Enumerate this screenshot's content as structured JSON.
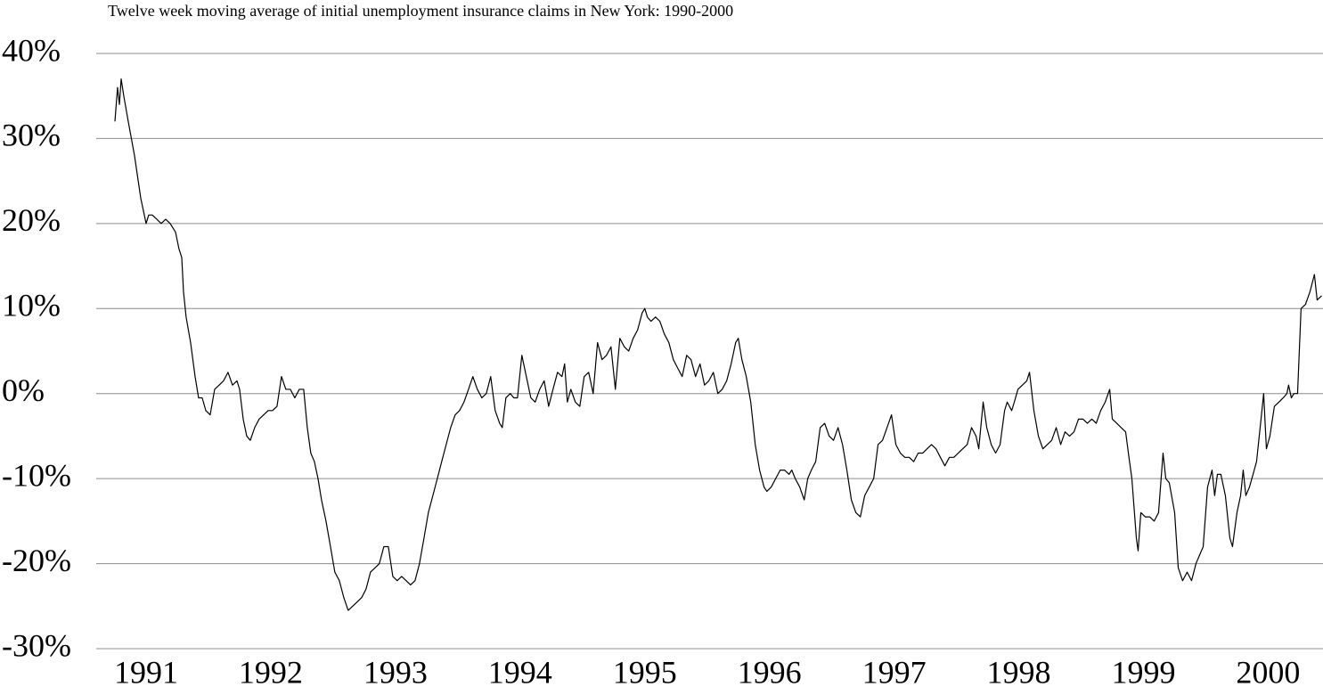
{
  "chart_data": {
    "type": "line",
    "title": "Twelve week moving average of initial unemployment insurance claims in New York:  1990-2000",
    "color": "#000000",
    "grid": true,
    "xlim": [
      1990.6,
      2000.44
    ],
    "xticks": [
      1991,
      1992,
      1993,
      1994,
      1995,
      1996,
      1997,
      1998,
      1999,
      2000
    ],
    "ylim": [
      -30,
      40
    ],
    "yticks": [
      {
        "value": -30,
        "label": "-30%"
      },
      {
        "value": -20,
        "label": "-20%"
      },
      {
        "value": -10,
        "label": "-10%"
      },
      {
        "value": 0,
        "label": "0%"
      },
      {
        "value": 10,
        "label": "10%"
      },
      {
        "value": 20,
        "label": "20%"
      },
      {
        "value": 30,
        "label": "30%"
      },
      {
        "value": 40,
        "label": "40%"
      }
    ],
    "x": [
      1990.75,
      1990.771,
      1990.786,
      1990.8,
      1990.821,
      1990.857,
      1990.907,
      1990.957,
      1991,
      1991.021,
      1991.05,
      1991.086,
      1991.121,
      1991.157,
      1991.193,
      1991.236,
      1991.264,
      1991.286,
      1991.3,
      1991.321,
      1991.357,
      1991.393,
      1991.421,
      1991.45,
      1991.479,
      1991.514,
      1991.55,
      1991.586,
      1991.621,
      1991.657,
      1991.693,
      1991.729,
      1991.75,
      1991.779,
      1991.807,
      1991.836,
      1991.871,
      1991.907,
      1991.943,
      1991.979,
      1992.014,
      1992.05,
      1992.086,
      1992.121,
      1992.157,
      1992.193,
      1992.229,
      1992.264,
      1992.293,
      1992.321,
      1992.35,
      1992.379,
      1992.407,
      1992.443,
      1992.479,
      1992.514,
      1992.55,
      1992.586,
      1992.621,
      1992.657,
      1992.693,
      1992.729,
      1992.764,
      1992.8,
      1992.836,
      1992.871,
      1992.907,
      1992.943,
      1992.979,
      1993.014,
      1993.05,
      1993.086,
      1993.121,
      1993.157,
      1993.193,
      1993.229,
      1993.264,
      1993.3,
      1993.336,
      1993.371,
      1993.407,
      1993.443,
      1993.479,
      1993.514,
      1993.55,
      1993.586,
      1993.621,
      1993.657,
      1993.693,
      1993.729,
      1993.764,
      1993.8,
      1993.836,
      1993.857,
      1993.886,
      1993.921,
      1993.95,
      1993.979,
      1994.014,
      1994.05,
      1994.086,
      1994.121,
      1994.157,
      1994.193,
      1994.229,
      1994.264,
      1994.3,
      1994.336,
      1994.357,
      1994.379,
      1994.407,
      1994.443,
      1994.479,
      1994.514,
      1994.55,
      1994.586,
      1994.621,
      1994.657,
      1994.693,
      1994.729,
      1994.764,
      1994.8,
      1994.836,
      1994.871,
      1994.907,
      1994.943,
      1994.979,
      1995,
      1995.021,
      1995.05,
      1995.086,
      1995.121,
      1995.157,
      1995.193,
      1995.229,
      1995.264,
      1995.3,
      1995.336,
      1995.371,
      1995.407,
      1995.443,
      1995.479,
      1995.514,
      1995.55,
      1995.586,
      1995.621,
      1995.657,
      1995.693,
      1995.729,
      1995.75,
      1995.779,
      1995.814,
      1995.85,
      1995.886,
      1995.921,
      1995.957,
      1995.979,
      1996.014,
      1996.05,
      1996.086,
      1996.121,
      1996.157,
      1996.179,
      1996.207,
      1996.243,
      1996.279,
      1996.307,
      1996.336,
      1996.371,
      1996.407,
      1996.443,
      1996.479,
      1996.514,
      1996.55,
      1996.586,
      1996.621,
      1996.657,
      1996.693,
      1996.729,
      1996.764,
      1996.8,
      1996.836,
      1996.871,
      1996.907,
      1996.943,
      1996.979,
      1997.014,
      1997.05,
      1997.086,
      1997.121,
      1997.157,
      1997.193,
      1997.229,
      1997.264,
      1997.3,
      1997.336,
      1997.371,
      1997.407,
      1997.443,
      1997.479,
      1997.514,
      1997.55,
      1997.586,
      1997.621,
      1997.657,
      1997.679,
      1997.714,
      1997.743,
      1997.779,
      1997.814,
      1997.85,
      1997.886,
      1997.907,
      1997.943,
      1997.964,
      1997.993,
      1998.029,
      1998.064,
      1998.086,
      1998.121,
      1998.157,
      1998.193,
      1998.229,
      1998.264,
      1998.3,
      1998.336,
      1998.371,
      1998.407,
      1998.443,
      1998.479,
      1998.514,
      1998.55,
      1998.586,
      1998.621,
      1998.657,
      1998.693,
      1998.729,
      1998.75,
      1998.786,
      1998.821,
      1998.857,
      1998.879,
      1998.907,
      1998.943,
      1998.957,
      1998.979,
      1999.014,
      1999.05,
      1999.086,
      1999.121,
      1999.157,
      1999.179,
      1999.207,
      1999.25,
      1999.279,
      1999.314,
      1999.35,
      1999.386,
      1999.421,
      1999.45,
      1999.479,
      1999.514,
      1999.55,
      1999.571,
      1999.593,
      1999.621,
      1999.657,
      1999.693,
      1999.714,
      1999.75,
      1999.779,
      1999.8,
      1999.821,
      1999.85,
      1999.879,
      1999.907,
      1999.943,
      1999.964,
      1999.986,
      2000.014,
      2000.05,
      2000.086,
      2000.121,
      2000.15,
      2000.164,
      2000.186,
      2000.207,
      2000.236,
      2000.264,
      2000.3,
      2000.336,
      2000.371,
      2000.393,
      2000.429
    ],
    "values": [
      32,
      36,
      34,
      37,
      35,
      32,
      28,
      23,
      20,
      21,
      21,
      20.5,
      20,
      20.5,
      20,
      19,
      17,
      16,
      12,
      9,
      6,
      2,
      -0.5,
      -0.5,
      -2,
      -2.5,
      0.5,
      1,
      1.5,
      2.5,
      1,
      1.5,
      0.5,
      -3,
      -5,
      -5.5,
      -4,
      -3,
      -2.5,
      -2,
      -2,
      -1.5,
      2,
      0.5,
      0.5,
      -0.5,
      0.5,
      0.5,
      -4,
      -7,
      -8,
      -10,
      -12.5,
      -15,
      -18,
      -21,
      -22,
      -24,
      -25.5,
      -25,
      -24.5,
      -24,
      -23,
      -21,
      -20.5,
      -20,
      -18,
      -18,
      -21.5,
      -22,
      -21.5,
      -22,
      -22.5,
      -22,
      -20,
      -17,
      -14,
      -12,
      -10,
      -8,
      -6,
      -4,
      -2.5,
      -2,
      -1,
      0.5,
      2,
      0.5,
      -0.5,
      0,
      2,
      -2,
      -3.5,
      -4,
      -0.5,
      0,
      -0.5,
      -0.5,
      4.5,
      2,
      -0.5,
      -1,
      0.5,
      1.5,
      -1.5,
      0.5,
      2.5,
      2,
      3.5,
      -1,
      0.5,
      -1,
      -1.5,
      2,
      2.5,
      0,
      6,
      4,
      4.5,
      5.5,
      0.5,
      6.5,
      5.5,
      5,
      6.5,
      7.5,
      9.5,
      10,
      9,
      8.5,
      9,
      8.5,
      7,
      6,
      4,
      3,
      2,
      4.5,
      4,
      2,
      3.5,
      1,
      1.5,
      2.5,
      0,
      0.5,
      1.5,
      3.5,
      6,
      6.5,
      4,
      2,
      -1,
      -6,
      -9,
      -11,
      -11.5,
      -11,
      -10,
      -9,
      -9,
      -9.5,
      -9,
      -10,
      -11,
      -12.5,
      -10,
      -9,
      -8,
      -4,
      -3.5,
      -5,
      -5.5,
      -4,
      -6,
      -9,
      -12.5,
      -14,
      -14.5,
      -12,
      -11,
      -10,
      -6,
      -5.5,
      -4,
      -2.5,
      -6,
      -7,
      -7.5,
      -7.5,
      -8,
      -7,
      -7,
      -6.5,
      -6,
      -6.5,
      -7.5,
      -8.5,
      -7.5,
      -7.5,
      -7,
      -6.5,
      -6,
      -4,
      -5,
      -6.5,
      -1,
      -4,
      -6,
      -7,
      -6,
      -2,
      -1,
      -2,
      -1,
      0.5,
      1,
      1.5,
      2.5,
      -2,
      -5,
      -6.5,
      -6,
      -5.5,
      -4,
      -6,
      -4.5,
      -5,
      -4.5,
      -3,
      -3,
      -3.5,
      -3,
      -3.5,
      -2,
      -1,
      0.5,
      -3,
      -3.5,
      -4,
      -4.5,
      -7,
      -10,
      -17,
      -18.5,
      -14,
      -14.5,
      -14.5,
      -15,
      -14,
      -7,
      -10,
      -10.5,
      -14,
      -20.5,
      -22,
      -21,
      -22,
      -20,
      -19,
      -18,
      -11,
      -9,
      -12,
      -9.5,
      -9.5,
      -12,
      -17,
      -18,
      -14,
      -12,
      -9,
      -12,
      -11,
      -9.5,
      -8,
      -3,
      0,
      -6.5,
      -5,
      -1.5,
      -1,
      -0.5,
      0,
      1,
      -0.5,
      0,
      0,
      10,
      10.5,
      12,
      14,
      11,
      11.5
    ]
  }
}
